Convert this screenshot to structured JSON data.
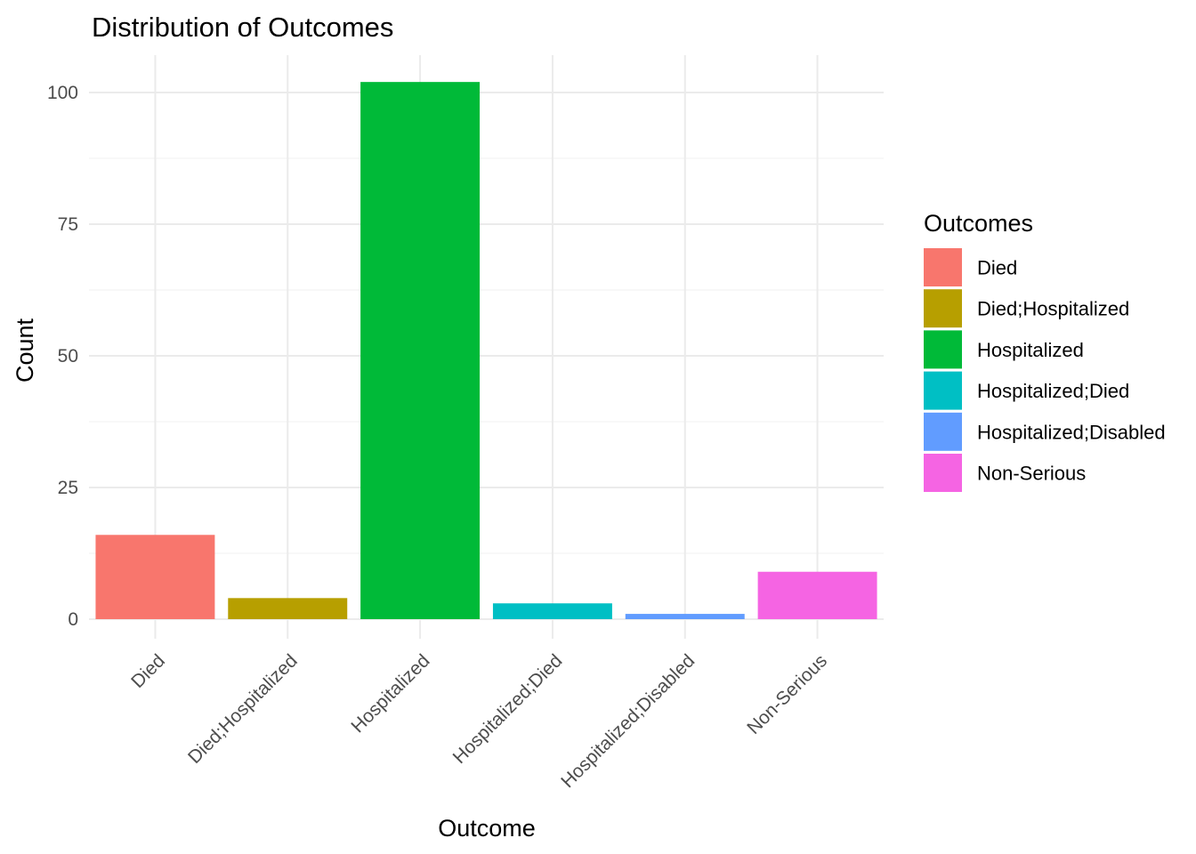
{
  "chart_data": {
    "type": "bar",
    "title": "Distribution of Outcomes",
    "xlabel": "Outcome",
    "ylabel": "Count",
    "categories": [
      "Died",
      "Died;Hospitalized",
      "Hospitalized",
      "Hospitalized;Died",
      "Hospitalized;Disabled",
      "Non-Serious"
    ],
    "values": [
      16,
      4,
      102,
      3,
      1,
      9
    ],
    "colors": [
      "#F8766D",
      "#B79F00",
      "#00BA38",
      "#00BFC4",
      "#619CFF",
      "#F564E3"
    ],
    "yticks": [
      0,
      25,
      50,
      75,
      100
    ],
    "ylim": [
      0,
      102
    ],
    "grid": true,
    "legend": {
      "title": "Outcomes",
      "position": "right",
      "entries": [
        "Died",
        "Died;Hospitalized",
        "Hospitalized",
        "Hospitalized;Died",
        "Hospitalized;Disabled",
        "Non-Serious"
      ]
    }
  }
}
